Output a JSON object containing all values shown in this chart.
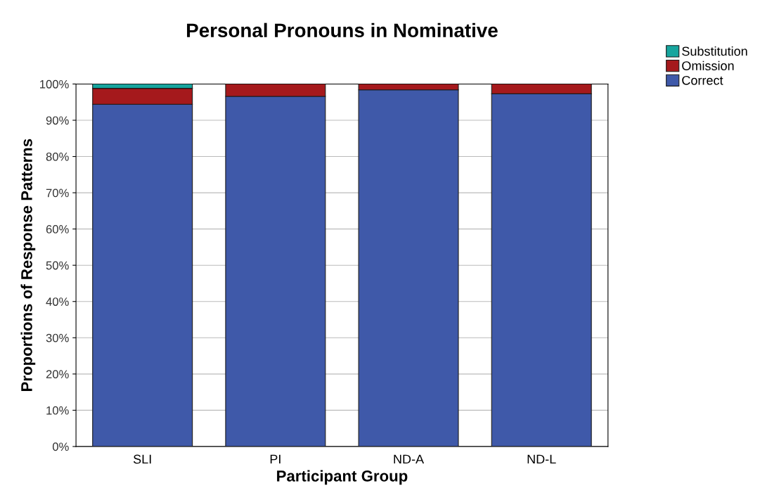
{
  "chart_data": {
    "type": "bar",
    "title": "Personal Pronouns in Nominative",
    "xlabel": "Participant Group",
    "ylabel": "Proportions of Response Patterns",
    "categories": [
      "SLI",
      "PI",
      "ND-A",
      "ND-L"
    ],
    "series": [
      {
        "name": "Correct",
        "color": "#3f59a9",
        "values": [
          94.4,
          96.6,
          98.4,
          97.3
        ]
      },
      {
        "name": "Omission",
        "color": "#a5191c",
        "values": [
          4.4,
          3.4,
          1.6,
          2.7
        ]
      },
      {
        "name": "Substitution",
        "color": "#17a59e",
        "values": [
          1.2,
          0,
          0,
          0
        ]
      }
    ],
    "stacked": true,
    "ylim": [
      0,
      100
    ],
    "yticks": [
      {
        "value": 0,
        "label": "0%"
      },
      {
        "value": 10,
        "label": "10%"
      },
      {
        "value": 20,
        "label": "20%"
      },
      {
        "value": 30,
        "label": "30%"
      },
      {
        "value": 40,
        "label": "40%"
      },
      {
        "value": 50,
        "label": "50%"
      },
      {
        "value": 60,
        "label": "60%"
      },
      {
        "value": 70,
        "label": "70%"
      },
      {
        "value": 80,
        "label": "80%"
      },
      {
        "value": 90,
        "label": "90%"
      },
      {
        "value": 100,
        "label": "100%"
      }
    ],
    "grid": "y",
    "legend": "top right"
  }
}
